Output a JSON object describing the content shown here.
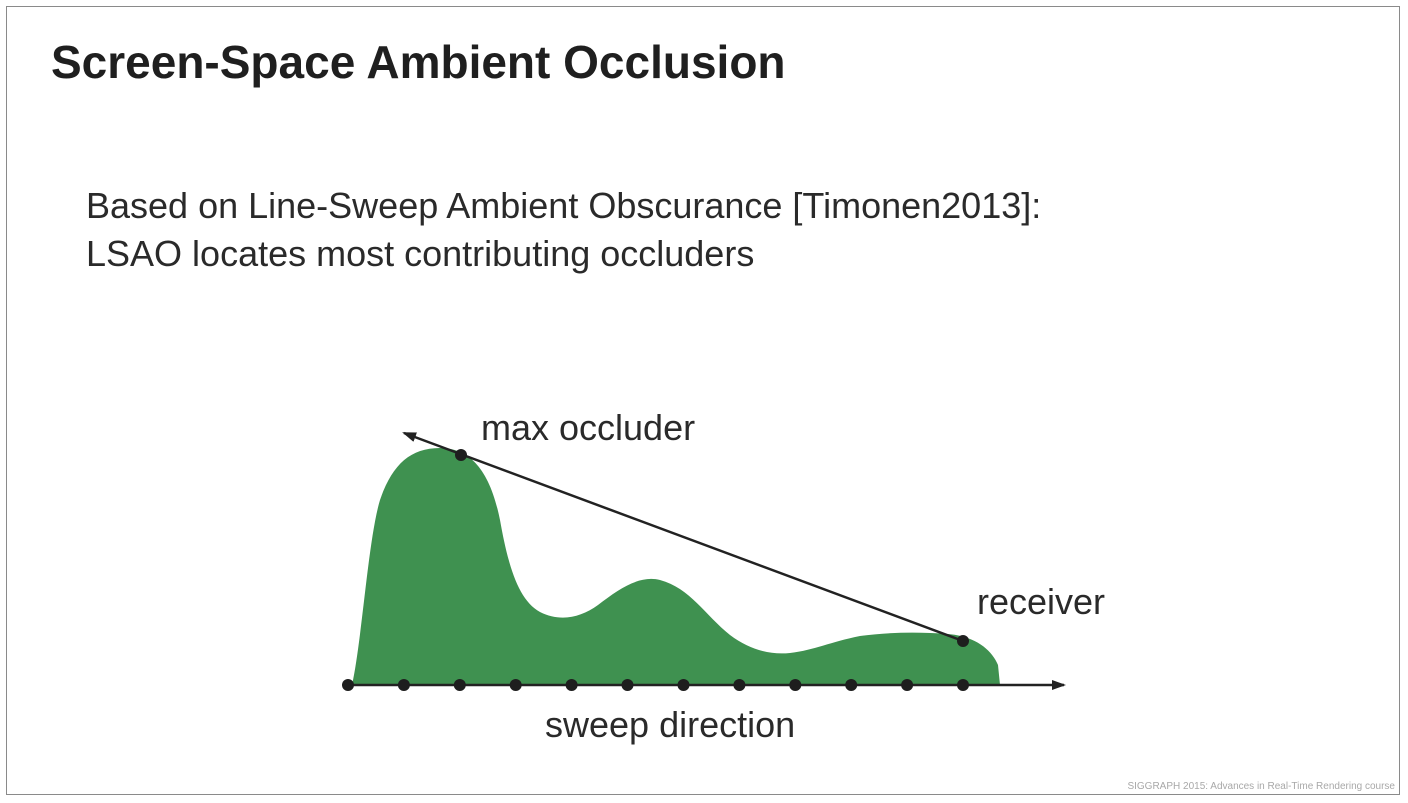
{
  "slide": {
    "title": "Screen-Space Ambient Occlusion",
    "body_lines": [
      "Based on Line-Sweep Ambient Obscurance [Timonen2013]:",
      "LSAO locates most contributing occluders"
    ],
    "footer": "SIGGRAPH 2015: Advances in Real-Time Rendering course"
  },
  "diagram": {
    "labels": {
      "max_occluder": "max occluder",
      "receiver": "receiver",
      "sweep_direction": "sweep direction"
    },
    "colors": {
      "terrain_fill": "#3f9150",
      "line": "#222222",
      "point": "#1e1e1e"
    },
    "sample_count": 12
  }
}
